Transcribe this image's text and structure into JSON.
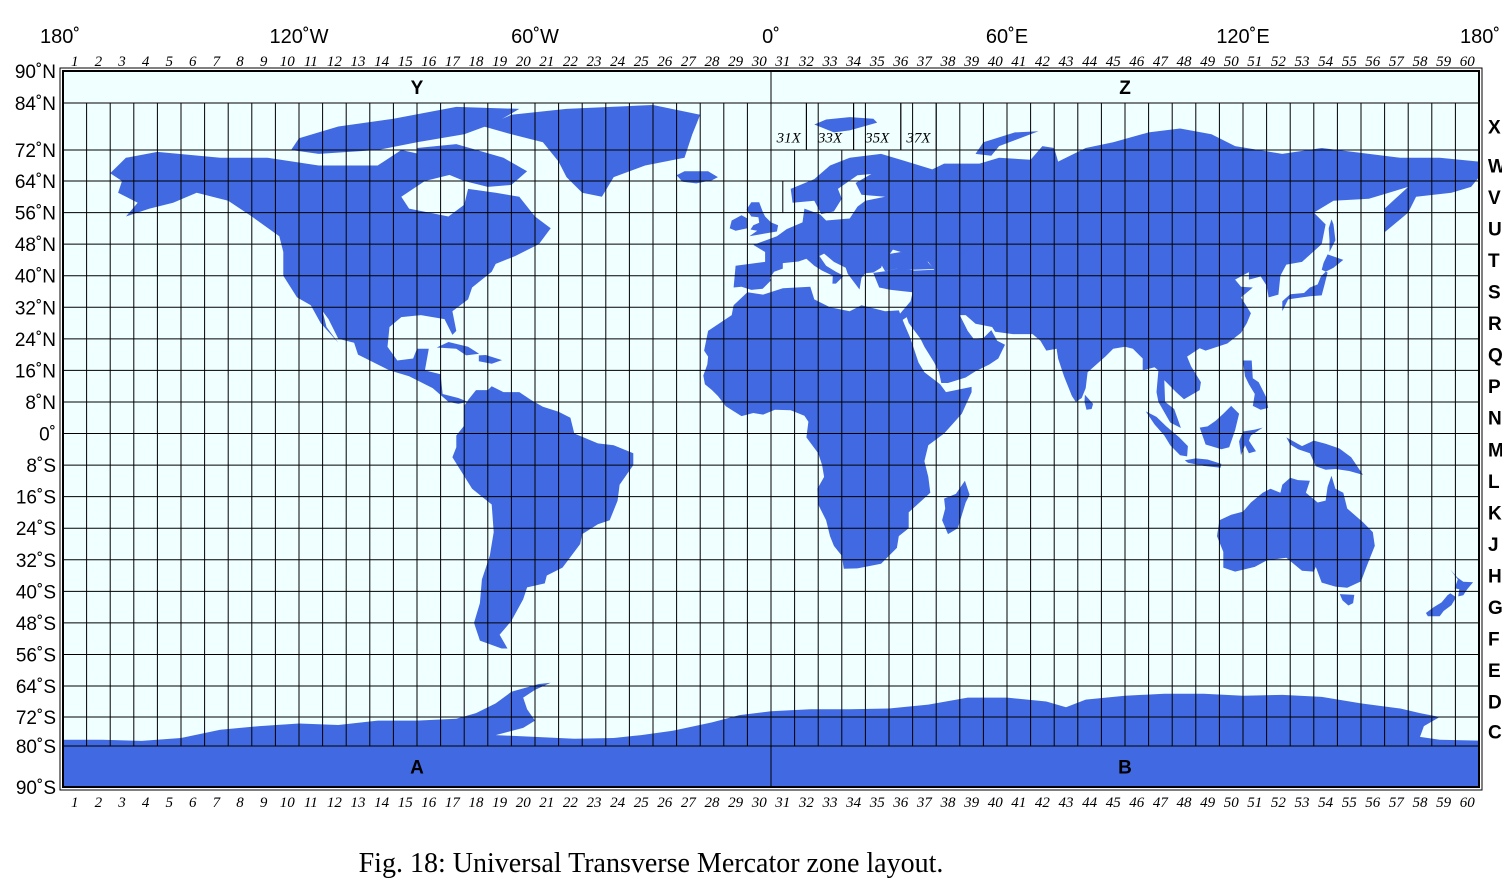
{
  "map": {
    "colors": {
      "ocean": "#f0ffff",
      "land": "#4169e1",
      "grid": "#000000"
    },
    "lon_ticks": [
      {
        "value": -180,
        "label": "180˚"
      },
      {
        "value": -120,
        "label": "120˚W"
      },
      {
        "value": -60,
        "label": "60˚W"
      },
      {
        "value": 0,
        "label": "0˚"
      },
      {
        "value": 60,
        "label": "60˚E"
      },
      {
        "value": 120,
        "label": "120˚E"
      },
      {
        "value": 180,
        "label": "180˚"
      }
    ],
    "lat_ticks": [
      {
        "value": 90,
        "label": "90˚N"
      },
      {
        "value": 84,
        "label": "84˚N"
      },
      {
        "value": 72,
        "label": "72˚N"
      },
      {
        "value": 64,
        "label": "64˚N"
      },
      {
        "value": 56,
        "label": "56˚N"
      },
      {
        "value": 48,
        "label": "48˚N"
      },
      {
        "value": 40,
        "label": "40˚N"
      },
      {
        "value": 32,
        "label": "32˚N"
      },
      {
        "value": 24,
        "label": "24˚N"
      },
      {
        "value": 16,
        "label": "16˚N"
      },
      {
        "value": 8,
        "label": "8˚N"
      },
      {
        "value": 0,
        "label": "0˚"
      },
      {
        "value": -8,
        "label": "8˚S"
      },
      {
        "value": -16,
        "label": "16˚S"
      },
      {
        "value": -24,
        "label": "24˚S"
      },
      {
        "value": -32,
        "label": "32˚S"
      },
      {
        "value": -40,
        "label": "40˚S"
      },
      {
        "value": -48,
        "label": "48˚S"
      },
      {
        "value": -56,
        "label": "56˚S"
      },
      {
        "value": -64,
        "label": "64˚S"
      },
      {
        "value": -72,
        "label": "72˚S"
      },
      {
        "value": -80,
        "label": "80˚S"
      },
      {
        "value": -90,
        "label": "90˚S"
      }
    ],
    "zone_numbers": [
      "1",
      "2",
      "3",
      "4",
      "5",
      "6",
      "7",
      "8",
      "9",
      "10",
      "11",
      "12",
      "13",
      "14",
      "15",
      "16",
      "17",
      "18",
      "19",
      "20",
      "21",
      "22",
      "23",
      "24",
      "25",
      "26",
      "27",
      "28",
      "29",
      "30",
      "31",
      "32",
      "33",
      "34",
      "35",
      "36",
      "37",
      "38",
      "39",
      "40",
      "41",
      "42",
      "43",
      "44",
      "45",
      "46",
      "47",
      "48",
      "49",
      "50",
      "51",
      "52",
      "53",
      "54",
      "55",
      "56",
      "57",
      "58",
      "59",
      "60"
    ],
    "latitude_bands": [
      {
        "letter": "X",
        "lat": 78
      },
      {
        "letter": "W",
        "lat": 68
      },
      {
        "letter": "V",
        "lat": 60
      },
      {
        "letter": "U",
        "lat": 52
      },
      {
        "letter": "T",
        "lat": 44
      },
      {
        "letter": "S",
        "lat": 36
      },
      {
        "letter": "R",
        "lat": 28
      },
      {
        "letter": "Q",
        "lat": 20
      },
      {
        "letter": "P",
        "lat": 12
      },
      {
        "letter": "N",
        "lat": 4
      },
      {
        "letter": "M",
        "lat": -4
      },
      {
        "letter": "L",
        "lat": -12
      },
      {
        "letter": "K",
        "lat": -20
      },
      {
        "letter": "J",
        "lat": -28
      },
      {
        "letter": "H",
        "lat": -36
      },
      {
        "letter": "G",
        "lat": -44
      },
      {
        "letter": "F",
        "lat": -52
      },
      {
        "letter": "E",
        "lat": -60
      },
      {
        "letter": "D",
        "lat": -68
      },
      {
        "letter": "C",
        "lat": -76
      }
    ],
    "polar_zones": [
      {
        "letter": "Y",
        "lon": -90,
        "lat": 87
      },
      {
        "letter": "Z",
        "lon": 90,
        "lat": 87
      },
      {
        "letter": "A",
        "lon": -90,
        "lat": -85
      },
      {
        "letter": "B",
        "lon": 90,
        "lat": -85
      }
    ],
    "svalbard_zones": [
      {
        "label": "31X",
        "lon_min": 0,
        "lon_max": 9
      },
      {
        "label": "33X",
        "lon_min": 9,
        "lon_max": 21
      },
      {
        "label": "35X",
        "lon_min": 21,
        "lon_max": 33
      },
      {
        "label": "37X",
        "lon_min": 33,
        "lon_max": 42
      }
    ],
    "norway_zone_boundary": {
      "lon": 3,
      "lat_min": 56,
      "lat_max": 64
    }
  },
  "caption": "Fig. 18: Universal Transverse Mercator zone layout."
}
